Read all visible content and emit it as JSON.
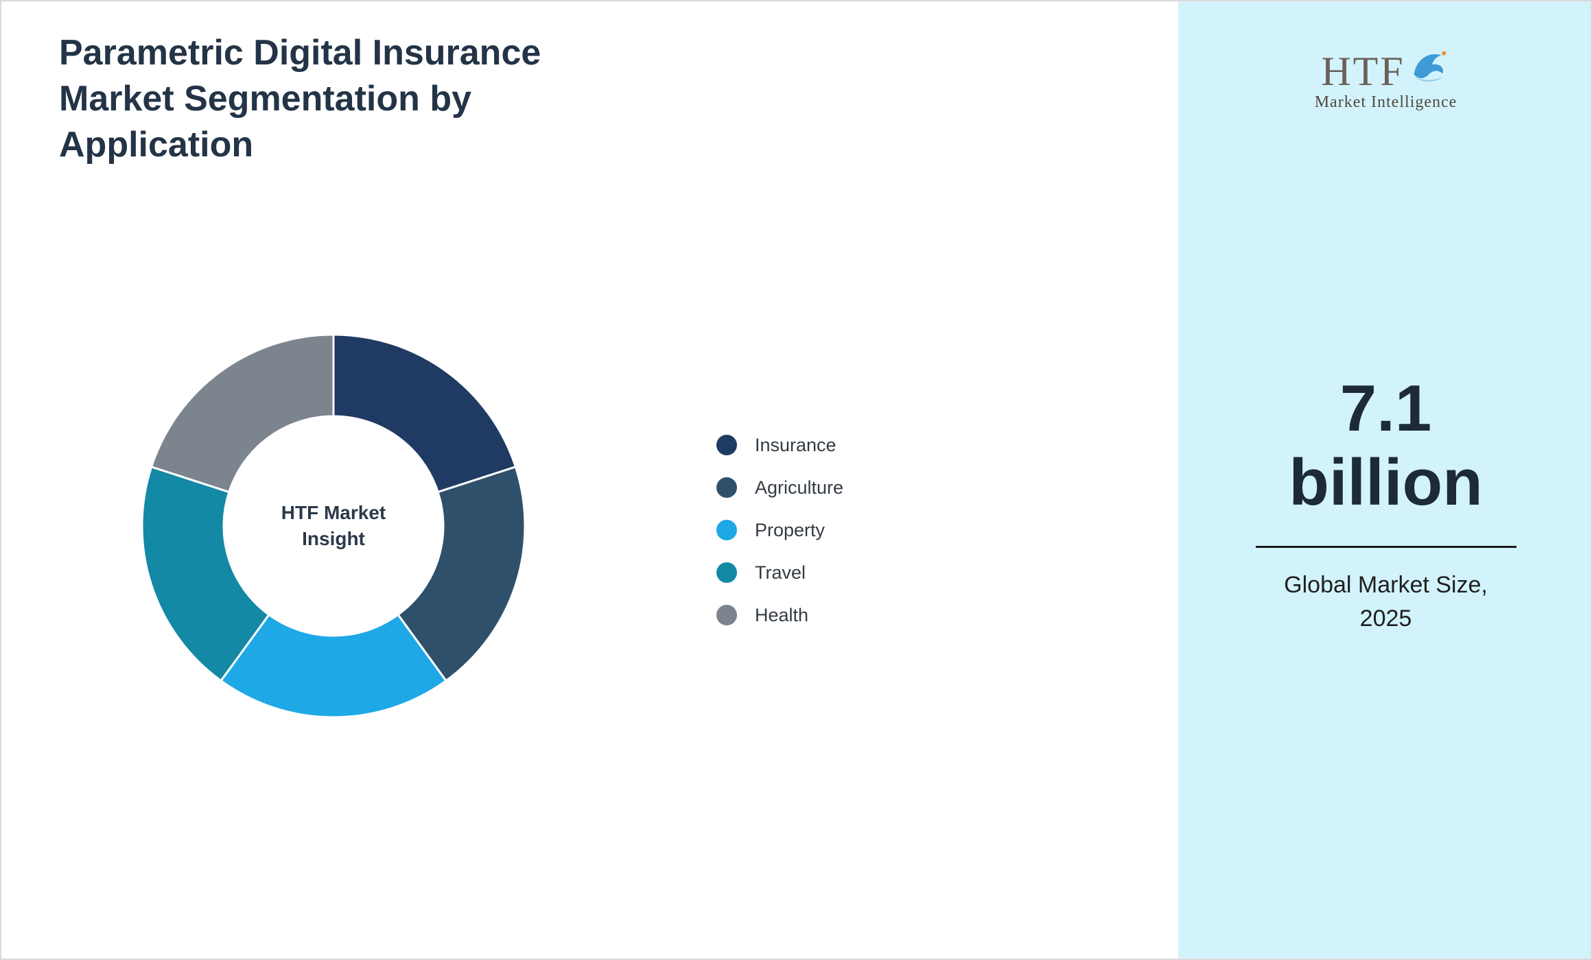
{
  "page": {
    "title": "Parametric Digital Insurance Market Segmentation by Application"
  },
  "chart_data": {
    "type": "pie",
    "subtype": "donut",
    "title": "Parametric Digital Insurance Market Segmentation by Application",
    "categories": [
      "Insurance",
      "Agriculture",
      "Property",
      "Travel",
      "Health"
    ],
    "values": [
      20,
      20,
      20,
      20,
      20
    ],
    "colors": [
      "#1f3b63",
      "#2f506b",
      "#1ea8e6",
      "#1389a5",
      "#7c848e"
    ],
    "center_label_line1": "HTF Market",
    "center_label_line2": "Insight",
    "legend_position": "right",
    "start_angle_deg": 0,
    "direction": "clockwise",
    "values_note": "segment shares estimated from arc angles; no numeric labels shown"
  },
  "sidebar": {
    "logo": {
      "text": "HTF",
      "subtext": "Market Intelligence"
    },
    "metric_value_line1": "7.1",
    "metric_value_line2": "billion",
    "metric_label_line1": "Global Market Size,",
    "metric_label_line2": "2025"
  }
}
